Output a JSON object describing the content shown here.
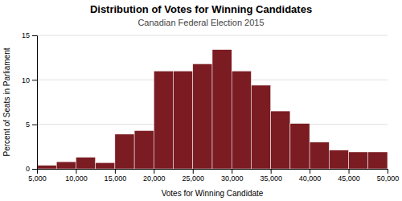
{
  "chart_data": {
    "type": "histogram",
    "title": "Distribution of Votes for Winning Candidates",
    "subtitle": "Canadian Federal Election 2015",
    "xlabel": "Votes for Winning Candidate",
    "ylabel": "Percent of Seats in Parliament",
    "bins": [
      5000,
      7500,
      10000,
      12500,
      15000,
      17500,
      20000,
      22500,
      25000,
      27500,
      30000,
      32500,
      35000,
      37500,
      40000,
      42500,
      45000,
      47500,
      50000
    ],
    "values": [
      0.4,
      0.8,
      1.3,
      0.7,
      3.9,
      4.3,
      11.0,
      11.0,
      11.8,
      13.4,
      11.0,
      9.4,
      6.5,
      5.1,
      3.0,
      2.1,
      1.9,
      1.9
    ],
    "color": "#7B1C22",
    "xlim": [
      5000,
      50000
    ],
    "xticks": [
      {
        "value": 5000,
        "label": "5,000"
      },
      {
        "value": 10000,
        "label": "10,000"
      },
      {
        "value": 15000,
        "label": "15,000"
      },
      {
        "value": 20000,
        "label": "20,000"
      },
      {
        "value": 25000,
        "label": "25,000"
      },
      {
        "value": 30000,
        "label": "30,000"
      },
      {
        "value": 35000,
        "label": "35,000"
      },
      {
        "value": 40000,
        "label": "40,000"
      },
      {
        "value": 45000,
        "label": "45,000"
      },
      {
        "value": 50000,
        "label": "50,000"
      }
    ],
    "ylim": [
      0,
      15
    ],
    "yticks": [
      0,
      5,
      10,
      15
    ],
    "grid": true
  }
}
